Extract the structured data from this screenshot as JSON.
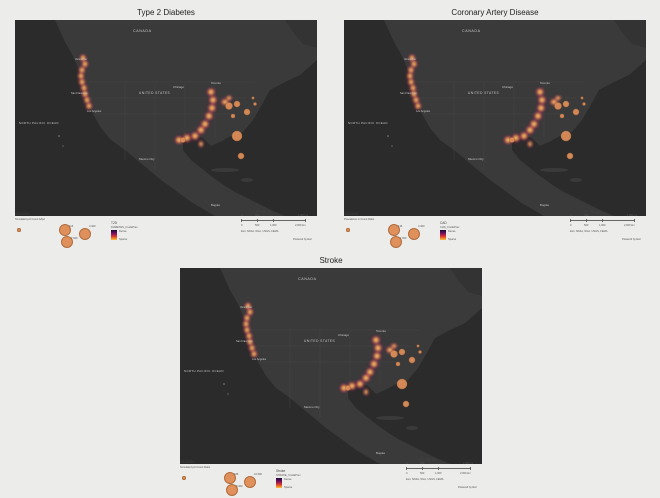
{
  "panels": [
    {
      "id": "t2d",
      "title": "Type 2 Diabetes",
      "legend": {
        "date": "4/11/2024",
        "size_title": "Simulated pct Count Adjst",
        "size_values": [
          "116",
          "3,400",
          "7,000"
        ],
        "heat_title": "T2D",
        "heat_sub": "DIABETES_CrudePrev",
        "heat_high": "Dense",
        "heat_low": "Sparse",
        "scale_ratio": "1:47,794,115",
        "scale_ticks": [
          "0",
          "500",
          "1,000",
          "2,000 km"
        ],
        "scale_top": [
          "0",
          "500",
          "1,000 mi"
        ],
        "credits": "Esri, NASA, NGA, USGS, FEMA",
        "powered": "Powered by Esri"
      }
    },
    {
      "id": "cad",
      "title": "Coronary Artery Disease",
      "legend": {
        "date": "4/11/2024",
        "size_title": "Prevalence in Count Ratio",
        "size_values": [
          "136",
          "3,400",
          "7,000"
        ],
        "heat_title": "CAD",
        "heat_sub": "CHD_CrudePrev",
        "heat_high": "Dense",
        "heat_low": "Sparse",
        "scale_ratio": "1:47,794,115",
        "scale_ticks": [
          "0",
          "500",
          "1,000",
          "2,000 km"
        ],
        "scale_top": [
          "0",
          "500",
          "1,000 mi"
        ],
        "credits": "Esri, NASA, NGA, USGS, FEMA",
        "powered": "Powered by Esri"
      }
    },
    {
      "id": "stroke",
      "title": "Stroke",
      "legend": {
        "date": "4/11/2024",
        "size_title": "Simulated pct Count Ratio",
        "size_values": [
          "186",
          "10,500",
          "8,400"
        ],
        "heat_title": "Stroke",
        "heat_sub": "STROKE_CrudePrev",
        "heat_high": "Dense",
        "heat_low": "Sparse",
        "scale_ratio": "1:47,794,115",
        "scale_ticks": [
          "0",
          "500",
          "1,000",
          "2,000 km"
        ],
        "scale_top": [
          "0",
          "500",
          "1,000 mi"
        ],
        "credits": "Esri, NASA, NGA, USGS, FEMA",
        "powered": "Powered by Esri"
      }
    }
  ],
  "map_labels": {
    "canada": "CANADA",
    "us": "UNITED STATES",
    "pacific": "NORTH PACIFIC OCEAN",
    "chicago": "Chicago",
    "toronto": "Toronto",
    "mexico": "Mexico City",
    "seattle": "Vancouver",
    "sf": "San Francisco",
    "la": "Los Angeles",
    "bogota": "Bogota"
  },
  "colors": {
    "basemap": "#2b2b2b",
    "land": "#3a3a3a",
    "heat_hot": "#ffffff",
    "heat_mid": "#f08a2a",
    "heat_low": "#7a1a7a",
    "bubble": "#e0905a"
  }
}
